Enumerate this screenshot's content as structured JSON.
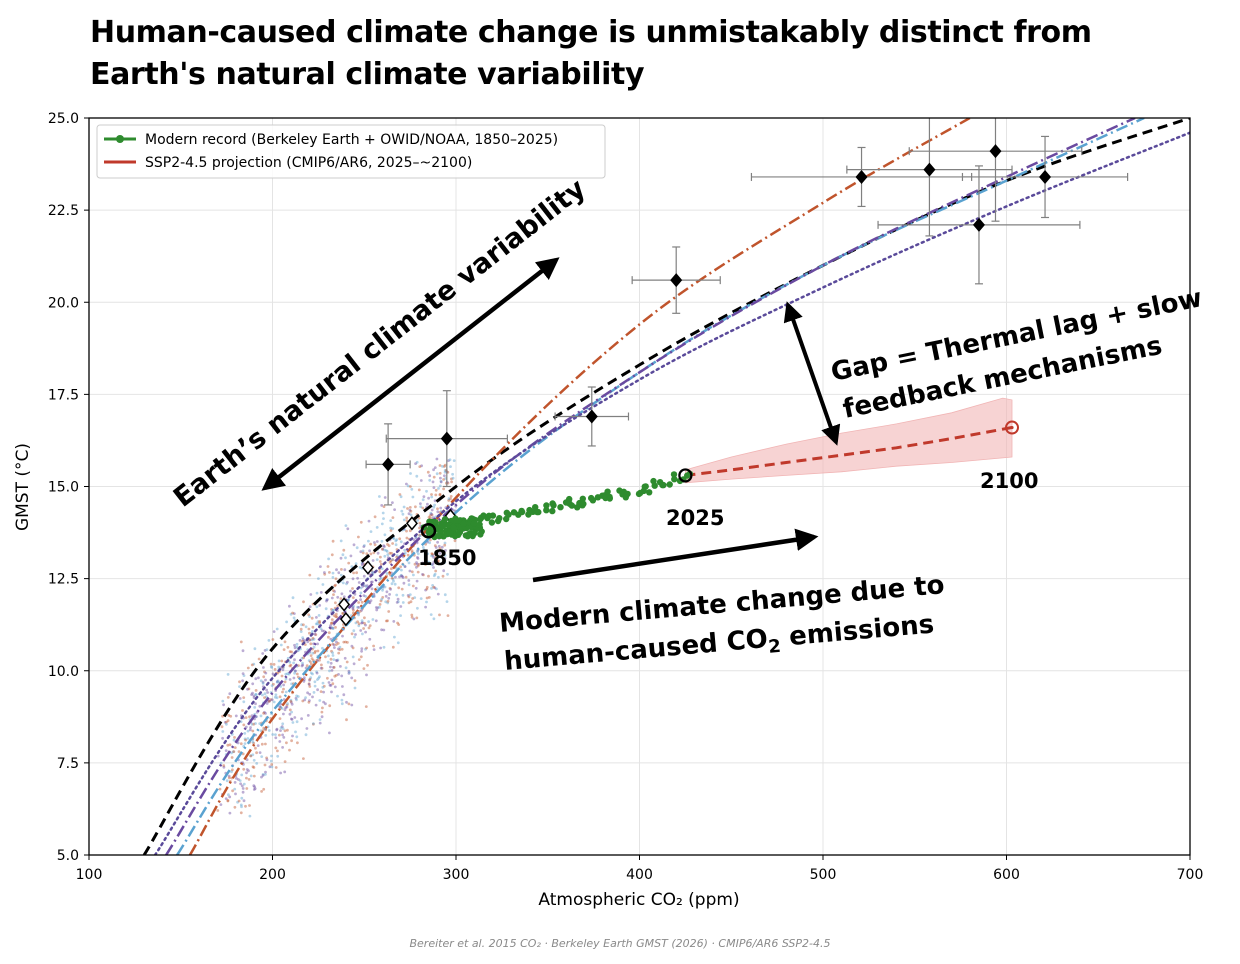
{
  "title": "Human-caused climate change is unmistakably distinct from Earth's natural climate variability",
  "footer": "Bereiter et al. 2015 CO₂  ·  Berkeley Earth GMST (2026)  ·  CMIP6/AR6 SSP2-4.5",
  "colors": {
    "modern": "#2e8b2e",
    "projection": "#c0392b",
    "projection_band": "#f1b5b5",
    "label_2100": "#ff0000",
    "curve_black": "#000000",
    "curve_orange": "#c0542c",
    "curve_blue": "#5aa2d0",
    "curve_purple": "#6a4aa0",
    "curve_dotted_purple": "#5a4a9a",
    "errorbar": "#808080"
  },
  "chart_data": {
    "type": "scatter",
    "xlabel": "Atmospheric CO₂ (ppm)",
    "ylabel": "GMST (°C)",
    "xlim": [
      100,
      700
    ],
    "ylim": [
      5.0,
      25.0
    ],
    "xticks": [
      "100",
      "200",
      "300",
      "400",
      "500",
      "600",
      "700"
    ],
    "yticks": [
      "5.0",
      "7.5",
      "10.0",
      "12.5",
      "15.0",
      "17.5",
      "20.0",
      "22.5",
      "25.0"
    ],
    "grid": true,
    "legend": {
      "location": "top-left",
      "entries": [
        {
          "label": "Modern record (Berkeley Earth + OWID/NOAA, 1850–2025)",
          "color": "#2e8b2e",
          "style": "line-marker"
        },
        {
          "label": "SSP2-4.5 projection (CMIP6/AR6, 2025–~2100)",
          "color": "#c0392b",
          "style": "line"
        }
      ]
    },
    "fit_curves": [
      {
        "name": "black-dashed",
        "color": "#000000",
        "style": "dashed",
        "points": [
          [
            130,
            5.0
          ],
          [
            200,
            10.6
          ],
          [
            300,
            15.0
          ],
          [
            400,
            18.3
          ],
          [
            500,
            21.0
          ],
          [
            600,
            23.3
          ],
          [
            700,
            25.0
          ]
        ]
      },
      {
        "name": "orange-dashdot",
        "color": "#c0542c",
        "style": "dashdot",
        "points": [
          [
            155,
            5.0
          ],
          [
            200,
            8.7
          ],
          [
            300,
            14.7
          ],
          [
            400,
            19.4
          ],
          [
            500,
            22.7
          ],
          [
            580,
            25.0
          ]
        ]
      },
      {
        "name": "blue-dashdot",
        "color": "#5aa2d0",
        "style": "dashdot",
        "points": [
          [
            148,
            5.0
          ],
          [
            200,
            8.9
          ],
          [
            300,
            14.3
          ],
          [
            400,
            18.1
          ],
          [
            500,
            21.0
          ],
          [
            600,
            23.3
          ],
          [
            675,
            25.0
          ]
        ]
      },
      {
        "name": "purple-dashdot",
        "color": "#6a4aa0",
        "style": "dashdot",
        "points": [
          [
            142,
            5.0
          ],
          [
            200,
            9.4
          ],
          [
            300,
            14.5
          ],
          [
            400,
            18.1
          ],
          [
            500,
            21.0
          ],
          [
            600,
            23.4
          ],
          [
            670,
            25.0
          ]
        ]
      },
      {
        "name": "purple-dotted",
        "color": "#5a4a9a",
        "style": "dotted",
        "points": [
          [
            136,
            5.0
          ],
          [
            200,
            9.8
          ],
          [
            300,
            14.6
          ],
          [
            400,
            17.9
          ],
          [
            500,
            20.4
          ],
          [
            600,
            22.6
          ],
          [
            700,
            24.6
          ]
        ]
      }
    ],
    "paleo_points": [
      {
        "co2": 263,
        "t": 15.6,
        "co2_err": 12,
        "t_err": 1.1
      },
      {
        "co2": 295,
        "t": 16.3,
        "co2_err": 33,
        "t_err": 1.3
      },
      {
        "co2": 374,
        "t": 16.9,
        "co2_err": 20,
        "t_err": 0.8
      },
      {
        "co2": 420,
        "t": 20.6,
        "co2_err": 24,
        "t_err": 0.9
      },
      {
        "co2": 521,
        "t": 23.4,
        "co2_err": 60,
        "t_err": 0.8
      },
      {
        "co2": 558,
        "t": 23.6,
        "co2_err": 45,
        "t_err": 1.8
      },
      {
        "co2": 585,
        "t": 22.1,
        "co2_err": 55,
        "t_err": 1.6
      },
      {
        "co2": 594,
        "t": 24.1,
        "co2_err": 47,
        "t_err": 1.9
      },
      {
        "co2": 621,
        "t": 23.4,
        "co2_err": 45,
        "t_err": 1.1
      }
    ],
    "ice_core_points": [
      {
        "co2": 276,
        "t": 14.0
      },
      {
        "co2": 297,
        "t": 14.2
      },
      {
        "co2": 252,
        "t": 12.8
      },
      {
        "co2": 239,
        "t": 11.8
      },
      {
        "co2": 240,
        "t": 11.4
      }
    ],
    "scatter_cloud": {
      "co2_range": [
        170,
        300
      ],
      "t_range": [
        6.0,
        15.8
      ],
      "colors": [
        "#c0542c",
        "#5aa2d0",
        "#6a4aa0"
      ],
      "count": 1300
    },
    "modern_record": {
      "start": {
        "year": 1850,
        "co2": 285,
        "t": 13.8
      },
      "end": {
        "year": 2025,
        "co2": 425,
        "t": 15.3
      },
      "points": [
        [
          285,
          13.8
        ],
        [
          290,
          13.9
        ],
        [
          295,
          13.85
        ],
        [
          300,
          13.95
        ],
        [
          305,
          13.9
        ],
        [
          310,
          14.05
        ],
        [
          315,
          14.05
        ],
        [
          320,
          14.1
        ],
        [
          325,
          14.15
        ],
        [
          330,
          14.2
        ],
        [
          335,
          14.25
        ],
        [
          340,
          14.3
        ],
        [
          345,
          14.35
        ],
        [
          350,
          14.4
        ],
        [
          355,
          14.45
        ],
        [
          360,
          14.55
        ],
        [
          365,
          14.5
        ],
        [
          370,
          14.6
        ],
        [
          375,
          14.65
        ],
        [
          380,
          14.7
        ],
        [
          385,
          14.75
        ],
        [
          390,
          14.8
        ],
        [
          395,
          14.8
        ],
        [
          400,
          14.85
        ],
        [
          405,
          14.95
        ],
        [
          410,
          15.05
        ],
        [
          415,
          15.1
        ],
        [
          420,
          15.25
        ],
        [
          425,
          15.3
        ]
      ]
    },
    "projection": {
      "scenario": "SSP2-4.5",
      "start": {
        "year": 2025,
        "co2": 425,
        "t": 15.3
      },
      "end": {
        "year": 2100,
        "co2": 603,
        "t": 16.6
      },
      "median": [
        [
          425,
          15.3
        ],
        [
          450,
          15.45
        ],
        [
          480,
          15.65
        ],
        [
          510,
          15.85
        ],
        [
          540,
          16.05
        ],
        [
          570,
          16.3
        ],
        [
          603,
          16.6
        ]
      ],
      "upper": [
        [
          425,
          15.45
        ],
        [
          450,
          15.8
        ],
        [
          480,
          16.15
        ],
        [
          510,
          16.45
        ],
        [
          540,
          16.7
        ],
        [
          570,
          17.0
        ],
        [
          598,
          17.4
        ],
        [
          603,
          17.35
        ]
      ],
      "lower": [
        [
          603,
          15.8
        ],
        [
          570,
          15.65
        ],
        [
          540,
          15.55
        ],
        [
          510,
          15.4
        ],
        [
          480,
          15.3
        ],
        [
          450,
          15.2
        ],
        [
          425,
          15.1
        ]
      ]
    },
    "annotations": [
      {
        "id": "label_1850",
        "text": "1850"
      },
      {
        "id": "label_2025",
        "text": "2025"
      },
      {
        "id": "label_2100",
        "text": "2100"
      },
      {
        "id": "natural",
        "text": "Earth’s natural climate variability"
      },
      {
        "id": "gap_line1",
        "text": "Gap = Thermal lag + slow"
      },
      {
        "id": "gap_line2",
        "text": "feedback mechanisms"
      },
      {
        "id": "modern_line1",
        "text": "Modern climate change due to"
      },
      {
        "id": "modern_line2_pre",
        "text": "human-caused CO"
      },
      {
        "id": "modern_line2_sub",
        "text": "2"
      },
      {
        "id": "modern_line2_post",
        "text": " emissions"
      }
    ]
  }
}
